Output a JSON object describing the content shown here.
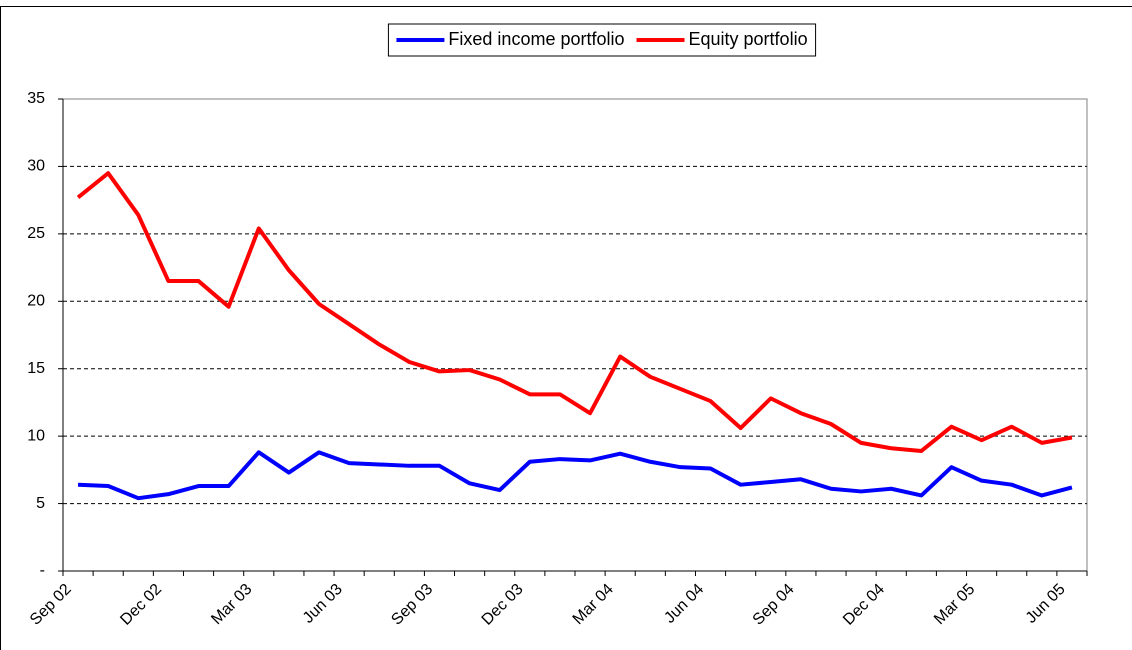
{
  "chart_data": {
    "type": "line",
    "categories": [
      "Sep 02",
      null,
      null,
      "Dec 02",
      null,
      null,
      "Mar 03",
      null,
      null,
      "Jun 03",
      null,
      null,
      "Sep 03",
      null,
      null,
      "Dec 03",
      null,
      null,
      "Mar 04",
      null,
      null,
      "Jun 04",
      null,
      null,
      "Sep 04",
      null,
      null,
      "Dec 04",
      null,
      null,
      "Mar 05",
      null,
      null,
      "Jun 05"
    ],
    "series": [
      {
        "name": "Fixed income portfolio",
        "color": "#0000ff",
        "values": [
          6.4,
          6.3,
          5.4,
          5.7,
          6.3,
          6.3,
          8.8,
          7.3,
          8.8,
          8.0,
          7.9,
          7.8,
          7.8,
          6.5,
          6.0,
          8.1,
          8.3,
          8.2,
          8.7,
          8.1,
          7.7,
          7.6,
          6.4,
          6.6,
          6.8,
          6.1,
          5.9,
          6.1,
          5.6,
          7.7,
          6.7,
          6.4,
          5.6,
          6.2
        ]
      },
      {
        "name": "Equity portfolio",
        "color": "#ff0000",
        "values": [
          27.7,
          29.5,
          26.4,
          21.5,
          21.5,
          19.6,
          25.4,
          22.3,
          19.8,
          18.3,
          16.8,
          15.5,
          14.8,
          14.9,
          14.2,
          13.1,
          13.1,
          11.7,
          15.9,
          14.4,
          13.5,
          12.6,
          10.6,
          12.8,
          11.7,
          10.9,
          9.5,
          9.1,
          8.9,
          10.7,
          9.7,
          10.7,
          9.5,
          9.9
        ]
      }
    ],
    "ylim": [
      0,
      35
    ],
    "yticks": [
      {
        "value": 0,
        "label": "-"
      },
      5,
      10,
      15,
      20,
      25,
      30,
      35
    ],
    "grid": true
  }
}
